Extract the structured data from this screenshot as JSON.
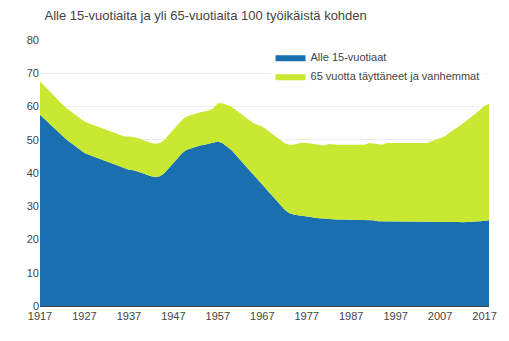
{
  "chart_data": {
    "type": "area",
    "stacked": true,
    "title": "Alle 15-vuotiaita ja yli 65-vuotiaita 100 työikäistä kohden",
    "x": [
      1917,
      1918,
      1919,
      1920,
      1921,
      1922,
      1923,
      1924,
      1925,
      1926,
      1927,
      1928,
      1929,
      1930,
      1931,
      1932,
      1933,
      1934,
      1935,
      1936,
      1937,
      1938,
      1939,
      1940,
      1941,
      1942,
      1943,
      1944,
      1945,
      1946,
      1947,
      1948,
      1949,
      1950,
      1951,
      1952,
      1953,
      1954,
      1955,
      1956,
      1957,
      1958,
      1959,
      1960,
      1961,
      1962,
      1963,
      1964,
      1965,
      1966,
      1967,
      1968,
      1969,
      1970,
      1971,
      1972,
      1973,
      1974,
      1975,
      1976,
      1977,
      1978,
      1979,
      1980,
      1981,
      1982,
      1983,
      1984,
      1985,
      1986,
      1987,
      1988,
      1989,
      1990,
      1991,
      1992,
      1993,
      1994,
      1995,
      1996,
      1997,
      1998,
      1999,
      2000,
      2001,
      2002,
      2003,
      2004,
      2005,
      2006,
      2007,
      2008,
      2009,
      2010,
      2011,
      2012,
      2013,
      2014,
      2015,
      2016,
      2017,
      2018
    ],
    "series": [
      {
        "name": "Alle 15-vuotiaat",
        "color": "#1a6faf",
        "values": [
          57.5,
          56.2,
          55.0,
          53.8,
          52.5,
          51.2,
          50.0,
          49.0,
          48.0,
          47.0,
          46.0,
          45.5,
          45.0,
          44.5,
          44.0,
          43.5,
          43.0,
          42.5,
          42.0,
          41.5,
          41.0,
          40.8,
          40.5,
          40.0,
          39.5,
          39.0,
          38.8,
          39.0,
          40.0,
          41.5,
          43.0,
          44.5,
          46.0,
          47.0,
          47.5,
          48.0,
          48.3,
          48.5,
          48.8,
          49.0,
          49.5,
          49.0,
          48.0,
          47.0,
          45.5,
          44.0,
          42.5,
          41.0,
          39.5,
          38.0,
          36.5,
          35.0,
          33.5,
          32.0,
          30.5,
          29.0,
          28.0,
          27.5,
          27.3,
          27.2,
          27.0,
          26.8,
          26.5,
          26.5,
          26.3,
          26.2,
          26.0,
          26.0,
          26.0,
          26.0,
          26.0,
          26.0,
          26.0,
          26.0,
          26.0,
          25.8,
          25.5,
          25.5,
          25.5,
          25.5,
          25.5,
          25.5,
          25.5,
          25.5,
          25.5,
          25.5,
          25.5,
          25.5,
          25.5,
          25.5,
          25.5,
          25.5,
          25.5,
          25.5,
          25.3,
          25.2,
          25.2,
          25.3,
          25.4,
          25.5,
          25.7,
          25.8
        ]
      },
      {
        "name": "65 vuotta täyttäneet ja vanhemmat",
        "color": "#c8e832",
        "values": [
          10.0,
          9.9,
          9.8,
          9.7,
          9.6,
          9.5,
          9.5,
          9.5,
          9.5,
          9.5,
          9.5,
          9.5,
          9.5,
          9.5,
          9.5,
          9.5,
          9.5,
          9.5,
          9.5,
          9.5,
          10.0,
          10.0,
          10.0,
          10.0,
          10.0,
          10.0,
          10.0,
          10.0,
          10.0,
          10.0,
          10.0,
          10.0,
          10.0,
          10.0,
          10.0,
          10.0,
          10.0,
          10.0,
          10.0,
          10.5,
          11.5,
          12.0,
          12.5,
          13.0,
          13.5,
          14.0,
          14.5,
          15.0,
          15.5,
          16.5,
          17.5,
          18.0,
          18.5,
          19.0,
          19.5,
          20.0,
          20.5,
          21.0,
          21.5,
          22.0,
          22.0,
          22.0,
          22.0,
          22.0,
          22.0,
          22.5,
          22.5,
          22.5,
          22.5,
          22.5,
          22.5,
          22.5,
          22.5,
          22.5,
          23.0,
          23.0,
          23.0,
          23.0,
          23.5,
          23.5,
          23.5,
          23.5,
          23.5,
          23.5,
          23.5,
          23.5,
          23.5,
          23.5,
          24.0,
          24.5,
          25.0,
          25.5,
          26.5,
          27.5,
          28.5,
          29.5,
          30.5,
          31.5,
          32.5,
          33.5,
          34.5,
          35.0
        ]
      }
    ],
    "xlim": [
      1917,
      2018
    ],
    "xticks": [
      1917,
      1927,
      1937,
      1947,
      1957,
      1967,
      1977,
      1987,
      1997,
      2007,
      2017
    ],
    "ylim": [
      0,
      80
    ],
    "yticks": [
      0,
      10,
      20,
      30,
      40,
      50,
      60,
      70,
      80
    ],
    "grid": true,
    "legend": "upper right"
  }
}
